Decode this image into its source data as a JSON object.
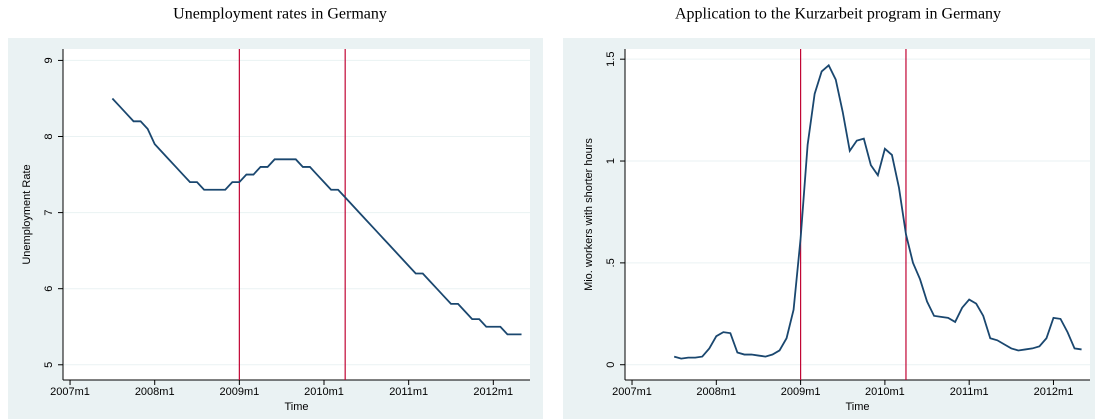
{
  "chart_data": [
    {
      "type": "line",
      "title": "Unemployment rates in Germany",
      "xlabel": "Time",
      "ylabel": "Unemployment Rate",
      "x": [
        570,
        571,
        572,
        573,
        574,
        575,
        576,
        577,
        578,
        579,
        580,
        581,
        582,
        583,
        584,
        585,
        586,
        587,
        588,
        589,
        590,
        591,
        592,
        593,
        594,
        595,
        596,
        597,
        598,
        599,
        600,
        601,
        602,
        603,
        604,
        605,
        606,
        607,
        608,
        609,
        610,
        611,
        612,
        613,
        614,
        615,
        616,
        617,
        618,
        619,
        620,
        621,
        622,
        623,
        624,
        625,
        626,
        627,
        628
      ],
      "values": [
        8.5,
        8.4,
        8.3,
        8.2,
        8.2,
        8.1,
        7.9,
        7.8,
        7.7,
        7.6,
        7.5,
        7.4,
        7.4,
        7.3,
        7.3,
        7.3,
        7.3,
        7.4,
        7.4,
        7.5,
        7.5,
        7.6,
        7.6,
        7.7,
        7.7,
        7.7,
        7.7,
        7.6,
        7.6,
        7.5,
        7.4,
        7.3,
        7.3,
        7.2,
        7.1,
        7.0,
        6.9,
        6.8,
        6.7,
        6.6,
        6.5,
        6.4,
        6.3,
        6.2,
        6.2,
        6.1,
        6.0,
        5.9,
        5.8,
        5.8,
        5.7,
        5.6,
        5.6,
        5.5,
        5.5,
        5.5,
        5.4,
        5.4,
        5.4
      ],
      "color": "#1a476f",
      "vlines": [
        588,
        603
      ],
      "vline_color": "#c10534",
      "xlim": [
        563,
        629.2
      ],
      "xticks": [
        {
          "value": 564,
          "label": "2007m1"
        },
        {
          "value": 576,
          "label": "2008m1"
        },
        {
          "value": 588,
          "label": "2009m1"
        },
        {
          "value": 600,
          "label": "2010m1"
        },
        {
          "value": 612,
          "label": "2011m1"
        },
        {
          "value": 624,
          "label": "2012m1"
        }
      ],
      "ylim": [
        4.8,
        9.15
      ],
      "yticks": [
        5,
        6,
        7,
        8,
        9
      ],
      "grid": true
    },
    {
      "type": "line",
      "title": "Application to the Kurzarbeit program in Germany",
      "xlabel": "Time",
      "ylabel": "Mio. workers with shorter hours",
      "x": [
        570,
        571,
        572,
        573,
        574,
        575,
        576,
        577,
        578,
        579,
        580,
        581,
        582,
        583,
        584,
        585,
        586,
        587,
        588,
        589,
        590,
        591,
        592,
        593,
        594,
        595,
        596,
        597,
        598,
        599,
        600,
        601,
        602,
        603,
        604,
        605,
        606,
        607,
        608,
        609,
        610,
        611,
        612,
        613,
        614,
        615,
        616,
        617,
        618,
        619,
        620,
        621,
        622,
        623,
        624,
        625,
        626,
        627,
        628
      ],
      "values": [
        0.04,
        0.03,
        0.035,
        0.035,
        0.04,
        0.08,
        0.14,
        0.16,
        0.155,
        0.06,
        0.05,
        0.05,
        0.045,
        0.04,
        0.05,
        0.07,
        0.13,
        0.27,
        0.62,
        1.08,
        1.33,
        1.44,
        1.47,
        1.4,
        1.24,
        1.05,
        1.1,
        1.11,
        0.98,
        0.93,
        1.06,
        1.03,
        0.87,
        0.64,
        0.5,
        0.42,
        0.31,
        0.24,
        0.235,
        0.23,
        0.21,
        0.28,
        0.32,
        0.3,
        0.24,
        0.13,
        0.12,
        0.1,
        0.08,
        0.07,
        0.075,
        0.08,
        0.09,
        0.13,
        0.23,
        0.225,
        0.16,
        0.08,
        0.075
      ],
      "color": "#1a476f",
      "vlines": [
        588,
        603
      ],
      "vline_color": "#c10534",
      "xlim": [
        563,
        629.2
      ],
      "xticks": [
        {
          "value": 564,
          "label": "2007m1"
        },
        {
          "value": 576,
          "label": "2008m1"
        },
        {
          "value": 588,
          "label": "2009m1"
        },
        {
          "value": 600,
          "label": "2010m1"
        },
        {
          "value": 612,
          "label": "2011m1"
        },
        {
          "value": 624,
          "label": "2012m1"
        }
      ],
      "ylim": [
        -0.075,
        1.55
      ],
      "yticks": [
        0,
        {
          "value": 0.5,
          "label": ".5"
        },
        1,
        1.5
      ],
      "grid": true
    }
  ]
}
